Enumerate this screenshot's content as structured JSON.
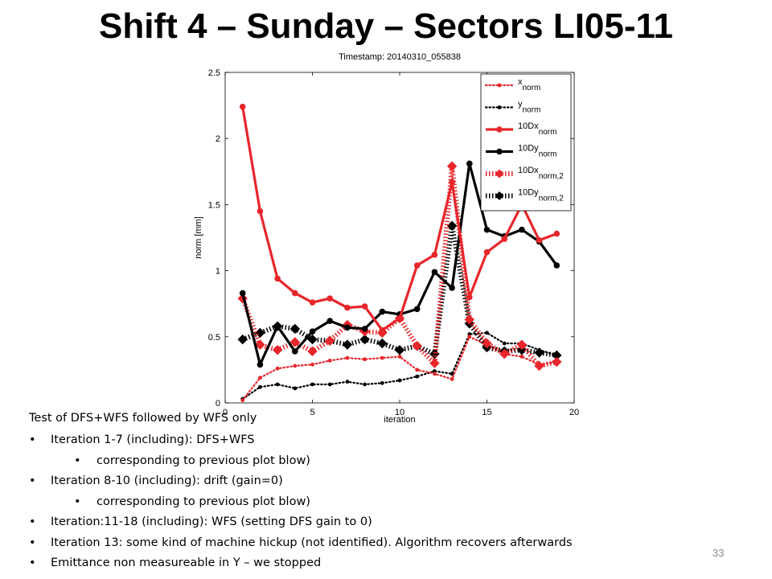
{
  "slide": {
    "title": "Shift 4 – Sunday – Sectors LI05-11",
    "page_number": "33"
  },
  "text": {
    "intro": "Test of DFS+WFS followed by WFS only",
    "bullets": [
      {
        "level": 1,
        "text": "Iteration 1-7 (including): DFS+WFS"
      },
      {
        "level": 2,
        "text": "corresponding to previous plot blow)"
      },
      {
        "level": 1,
        "text": "Iteration 8-10 (including): drift (gain=0)"
      },
      {
        "level": 2,
        "text": "corresponding to previous plot blow)"
      },
      {
        "level": 1,
        "text": "Iteration:11-18 (including): WFS (setting DFS gain to 0)"
      },
      {
        "level": 1,
        "text": "Iteration 13: some kind of machine hickup (not identified).  Algorithm recovers afterwards"
      },
      {
        "level": 1,
        "text": "Emittance non measureable in Y – we stopped"
      }
    ],
    "bullet_glyph": "•"
  },
  "chart_data": {
    "type": "line",
    "title": "Timestamp: 20140310_055838",
    "xlabel": "iteration",
    "ylabel": "norm [mm]",
    "xlim": [
      0,
      20
    ],
    "ylim": [
      0,
      2.5
    ],
    "xticks": [
      0,
      5,
      10,
      15,
      20
    ],
    "yticks": [
      0,
      0.5,
      1,
      1.5,
      2,
      2.5
    ],
    "ytick_labels": [
      "0",
      "0.5",
      "1",
      "1.5",
      "2",
      "2.5"
    ],
    "grid": false,
    "legend_position": "top-right",
    "x": [
      1,
      2,
      3,
      4,
      5,
      6,
      7,
      8,
      9,
      10,
      11,
      12,
      13,
      14,
      15,
      16,
      17,
      18,
      19
    ],
    "series": [
      {
        "name": "x",
        "subscript": "norm",
        "color": "#e8262b",
        "style": "dotted",
        "marker": "dot",
        "values": [
          0.02,
          0.19,
          0.26,
          0.28,
          0.29,
          0.32,
          0.34,
          0.33,
          0.34,
          0.35,
          0.25,
          0.22,
          0.18,
          0.5,
          0.44,
          0.37,
          0.35,
          0.29,
          0.31
        ]
      },
      {
        "name": "y",
        "subscript": "norm",
        "color": "#000000",
        "style": "dotted",
        "marker": "dot",
        "values": [
          0.03,
          0.12,
          0.14,
          0.11,
          0.14,
          0.14,
          0.16,
          0.14,
          0.15,
          0.17,
          0.2,
          0.24,
          0.22,
          0.52,
          0.53,
          0.45,
          0.45,
          0.4,
          0.36
        ]
      },
      {
        "name": "10Dx",
        "subscript": "norm",
        "color": "#e8262b",
        "style": "solid",
        "marker": "dot",
        "values": [
          2.24,
          1.45,
          0.94,
          0.83,
          0.76,
          0.79,
          0.72,
          0.73,
          0.55,
          0.64,
          1.04,
          1.12,
          1.67,
          0.8,
          1.14,
          1.24,
          1.5,
          1.23,
          1.28
        ]
      },
      {
        "name": "10Dy",
        "subscript": "norm",
        "color": "#000000",
        "style": "solid",
        "marker": "dot",
        "values": [
          0.83,
          0.29,
          0.58,
          0.39,
          0.54,
          0.62,
          0.57,
          0.56,
          0.69,
          0.67,
          0.71,
          0.99,
          0.87,
          1.81,
          1.31,
          1.26,
          1.31,
          1.22,
          1.04
        ]
      },
      {
        "name": "10Dx",
        "subscript": "norm,2",
        "color": "#e8262b",
        "style": "hatch",
        "marker": "diamond",
        "values": [
          0.79,
          0.44,
          0.4,
          0.46,
          0.39,
          0.47,
          0.59,
          0.54,
          0.53,
          0.64,
          0.43,
          0.3,
          1.79,
          0.63,
          0.45,
          0.37,
          0.44,
          0.28,
          0.31
        ]
      },
      {
        "name": "10Dy",
        "subscript": "norm,2",
        "color": "#000000",
        "style": "hatch",
        "marker": "diamond",
        "values": [
          0.48,
          0.53,
          0.58,
          0.56,
          0.48,
          0.47,
          0.44,
          0.48,
          0.45,
          0.4,
          0.43,
          0.37,
          1.34,
          0.6,
          0.42,
          0.39,
          0.4,
          0.38,
          0.36
        ]
      }
    ]
  }
}
